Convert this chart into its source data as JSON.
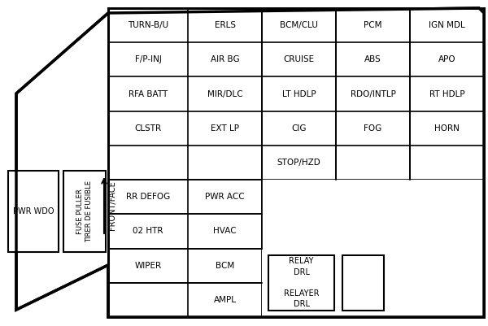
{
  "bg_color": "#ffffff",
  "line_color": "#000000",
  "text_color": "#000000",
  "grid_rows": [
    [
      "TURN-B/U",
      "ERLS",
      "BCM/CLU",
      "PCM",
      "IGN MDL"
    ],
    [
      "F/P-INJ",
      "AIR BG",
      "CRUISE",
      "ABS",
      "APO"
    ],
    [
      "RFA BATT",
      "MIR/DLC",
      "LT HDLP",
      "RDO/INTLP",
      "RT HDLP"
    ],
    [
      "CLSTR",
      "EXT LP",
      "CIG",
      "FOG",
      "HORN"
    ],
    [
      "",
      "",
      "STOP/HZD",
      "",
      ""
    ],
    [
      "RR DEFOG",
      "PWR ACC",
      "",
      "",
      ""
    ],
    [
      "02 HTR",
      "HVAC",
      "",
      "",
      ""
    ],
    [
      "WIPER",
      "BCM",
      "",
      "",
      ""
    ],
    [
      "",
      "AMPL",
      "",
      "",
      ""
    ]
  ],
  "pwr_wdo_text": "PWR WDO",
  "fuse_puller_text": "FUSE PULLER\nTIRER DE FUSIBLE",
  "front_face_text": "FRONT/FACE",
  "relay_text": "RELAY\nDRL\n\nRELAYER\nDRL"
}
